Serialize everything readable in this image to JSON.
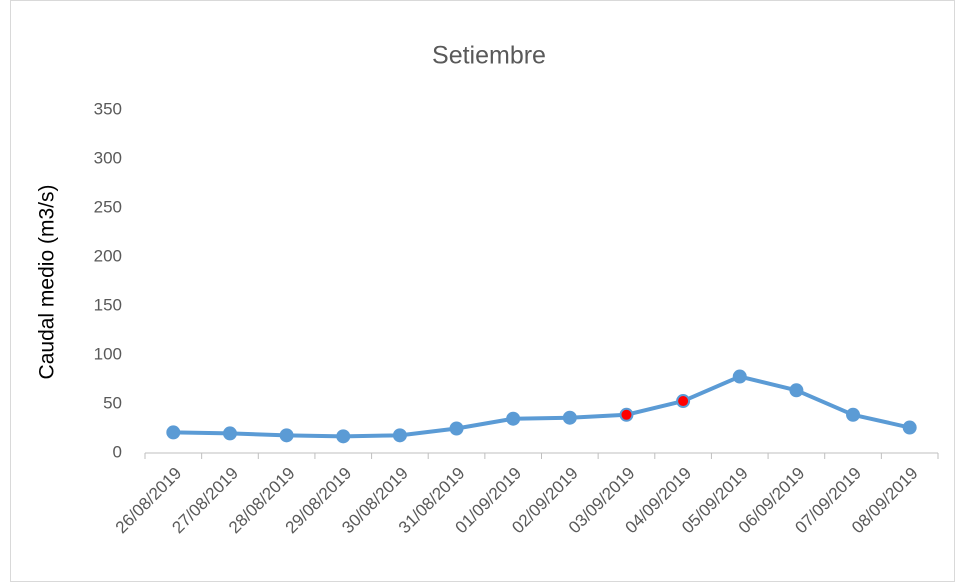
{
  "chart_data": {
    "type": "line",
    "title": "Setiembre",
    "y_label": "Caudal medio (m3/s)",
    "categories": [
      "26/08/2019",
      "27/08/2019",
      "28/08/2019",
      "29/08/2019",
      "30/08/2019",
      "31/08/2019",
      "01/09/2019",
      "02/09/2019",
      "03/09/2019",
      "04/09/2019",
      "05/09/2019",
      "06/09/2019",
      "07/09/2019",
      "08/09/2019"
    ],
    "values": [
      21,
      20,
      18,
      17,
      18,
      25,
      35,
      36,
      39,
      53,
      78,
      64,
      39,
      26
    ],
    "color": "#5b9bd5",
    "marker_colors": [
      "#5b9bd5",
      "#5b9bd5",
      "#5b9bd5",
      "#5b9bd5",
      "#5b9bd5",
      "#5b9bd5",
      "#5b9bd5",
      "#5b9bd5",
      "#ff0000",
      "#ff0000",
      "#5b9bd5",
      "#5b9bd5",
      "#5b9bd5",
      "#5b9bd5"
    ],
    "ylim": [
      0,
      350
    ],
    "yticks": [
      0,
      50,
      100,
      150,
      200,
      250,
      300,
      350
    ],
    "grid": false
  }
}
